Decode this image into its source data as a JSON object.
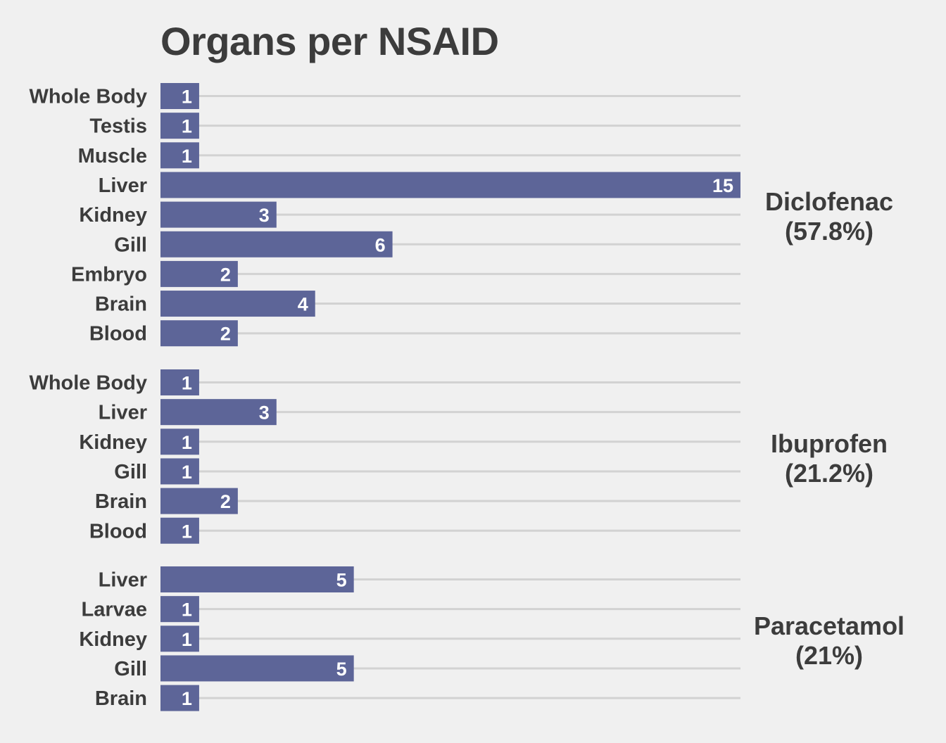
{
  "chart_data": {
    "type": "bar",
    "orientation": "horizontal",
    "title": "Organs per NSAID",
    "xlabel": "",
    "ylabel": "",
    "xlim": [
      0,
      15
    ],
    "bar_color": "#5d6598",
    "grid": true,
    "groups": [
      {
        "name": "Diclofenac",
        "share": "(57.8%)",
        "categories": [
          "Whole Body",
          "Testis",
          "Muscle",
          "Liver",
          "Kidney",
          "Gill",
          "Embryo",
          "Brain",
          "Blood"
        ],
        "values": [
          1,
          1,
          1,
          15,
          3,
          6,
          2,
          4,
          2
        ]
      },
      {
        "name": "Ibuprofen",
        "share": "(21.2%)",
        "categories": [
          "Whole Body",
          "Liver",
          "Kidney",
          "Gill",
          "Brain",
          "Blood"
        ],
        "values": [
          1,
          3,
          1,
          1,
          2,
          1
        ]
      },
      {
        "name": "Paracetamol",
        "share": "(21%)",
        "categories": [
          "Liver",
          "Larvae",
          "Kidney",
          "Gill",
          "Brain"
        ],
        "values": [
          5,
          1,
          1,
          5,
          1
        ]
      }
    ]
  }
}
